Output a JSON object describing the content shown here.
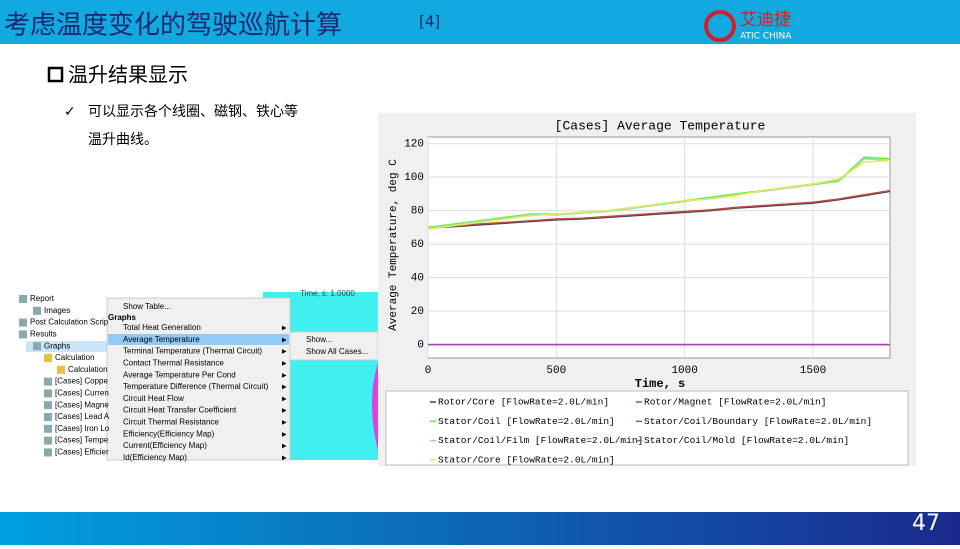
{
  "header": {
    "title": "考虑温度变化的驾驶巡航计算",
    "ref": "[4]",
    "logo_cn": "艾迪捷",
    "logo_en": "ATIC CHINA"
  },
  "section": "温升结果显示",
  "bullet": {
    "mark": "✓",
    "lines": [
      "可以显示各个线圈、磁钢、铁心等",
      "温升曲线。"
    ]
  },
  "tree": [
    "Report",
    "Images",
    "Post Calculation Scrip",
    "Results",
    "Graphs",
    "Calculation",
    "Calculation",
    "[Cases] Coppe",
    "[Cases] Curren",
    "[Cases] Magne",
    "[Cases] Lead A",
    "[Cases] Iron Lo",
    "[Cases] Tempe",
    "[Cases] Efficier"
  ],
  "menu": [
    "Show Table...",
    "Graphs",
    "Total Heat Generation",
    "Average Temperature",
    "Terminal Temperature (Thermal Circuit)",
    "Contact Thermal Resistance",
    "Average Temperature Per Cond",
    "Temperature Difference (Thermal Circuit)",
    "Circuit Heat Flow",
    "Circuit Heat Transfer Coefficient",
    "Circuit Thermal Resistance",
    "Efficiency(Efficiency Map)",
    "Current(Efficiency Map)",
    "Id(Efficiency Map)"
  ],
  "submenu": [
    "Show...",
    "Show All Cases..."
  ],
  "viewer_label": "Time, s: 1.0000",
  "chart_data": {
    "type": "line",
    "title": "[Cases] Average Temperature",
    "x_label": "Time, s",
    "y_label": "Average Temperature, deg C",
    "x": [
      0,
      100,
      200,
      300,
      400,
      500,
      600,
      700,
      800,
      900,
      1000,
      1100,
      1200,
      1300,
      1400,
      1500,
      1600,
      1700,
      1800
    ],
    "xlim": [
      0,
      1800
    ],
    "xticks": [
      0,
      500,
      1000,
      1500
    ],
    "ylim": [
      -8,
      124
    ],
    "yticks": [
      0,
      20,
      40,
      60,
      80,
      100,
      120
    ],
    "grid": true,
    "series": [
      {
        "name": "Rotor/Core [FlowRate=2.0L/min]",
        "color": "#404040",
        "values": [
          69.5,
          70.5,
          71.5,
          72.5,
          73.5,
          74.5,
          75,
          76,
          77,
          78,
          79,
          80,
          81.5,
          82.5,
          83.5,
          84.5,
          86.5,
          89,
          91.5
        ]
      },
      {
        "name": "Rotor/Magnet [FlowRate=2.0L/min]",
        "color": "#c04848",
        "values": [
          70,
          71,
          72,
          73,
          74,
          75,
          75.5,
          76.5,
          77.5,
          78.5,
          79.5,
          80.5,
          82,
          83,
          84,
          85,
          87,
          89.5,
          92
        ]
      },
      {
        "name": "Stator/Coil [FlowRate=2.0L/min]",
        "color": "#66ee33",
        "values": [
          70,
          72,
          74,
          76,
          78,
          78,
          79,
          80,
          82,
          84,
          86,
          88,
          90,
          92,
          94,
          96,
          98,
          112,
          111
        ]
      },
      {
        "name": "Stator/Coil/Boundary [FlowRate=2.0L/min]",
        "color": "#6060c0",
        "values": [
          0,
          0,
          0,
          0,
          0,
          0,
          0,
          0,
          0,
          0,
          0,
          0,
          0,
          0,
          0,
          0,
          0,
          0,
          0
        ]
      },
      {
        "name": "Stator/Coil/Film [FlowRate=2.0L/min]",
        "color": "#90e0a0",
        "values": [
          69.5,
          71.5,
          73.5,
          75.5,
          77.5,
          77.5,
          78.5,
          79.5,
          81.5,
          83.5,
          85.5,
          87.5,
          89.5,
          91.5,
          93.5,
          95.5,
          97.5,
          111,
          110
        ]
      },
      {
        "name": "Stator/Coil/Mold [FlowRate=2.0L/min]",
        "color": "#b040c0",
        "values": [
          0,
          0,
          0,
          0,
          0,
          0,
          0,
          0,
          0,
          0,
          0,
          0,
          0,
          0,
          0,
          0,
          0,
          0,
          0
        ]
      },
      {
        "name": "Stator/Core [FlowRate=2.0L/min]",
        "color": "#e8e860",
        "values": [
          69,
          71,
          73,
          75,
          77,
          78,
          79,
          80,
          82,
          84,
          86,
          87,
          89,
          92,
          94,
          96,
          99,
          109,
          110
        ]
      }
    ]
  },
  "page_number": "47"
}
